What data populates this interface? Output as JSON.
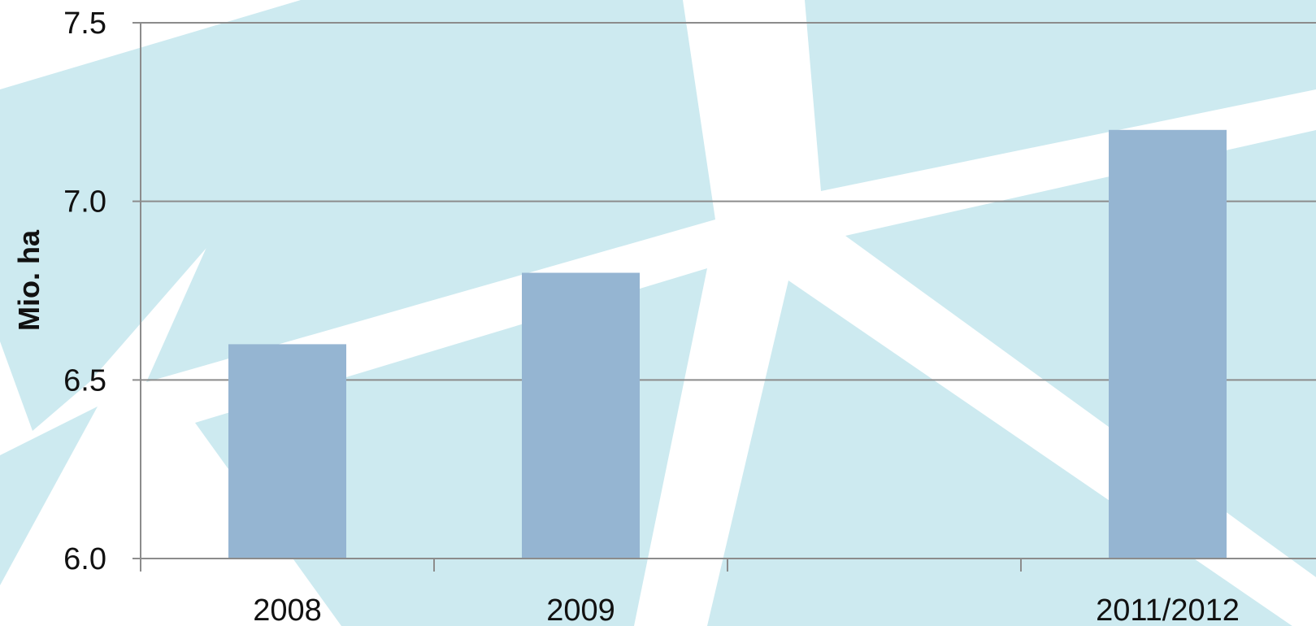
{
  "chart_data": {
    "type": "bar",
    "title": "",
    "xlabel": "",
    "ylabel": "Mio. ha",
    "categories": [
      "2008",
      "2009",
      "",
      "2011/2012"
    ],
    "values": [
      6.6,
      6.8,
      null,
      7.2
    ],
    "ylim": [
      6.0,
      7.5
    ],
    "yticks": [
      "6.0",
      "6.5",
      "7.0",
      "7.5"
    ],
    "ytick_values": [
      6.0,
      6.5,
      7.0,
      7.5
    ],
    "grid": true,
    "legend": "none",
    "colors": {
      "bar": "#95b5d2",
      "grid": "#8c8c8c",
      "background_shape": "#cdeaf0",
      "background": "#ffffff"
    }
  }
}
